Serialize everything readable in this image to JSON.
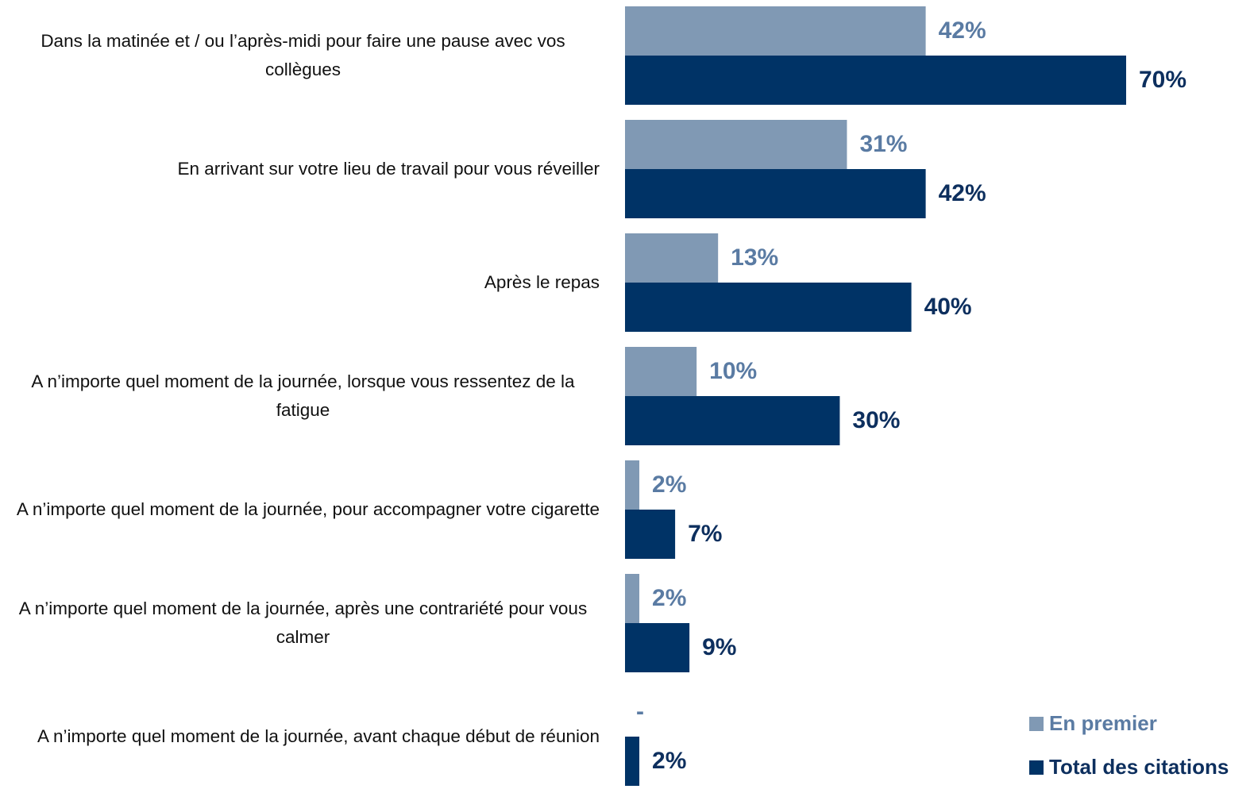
{
  "chart_data": {
    "type": "barh",
    "categories": [
      "Dans la matinée et / ou l’après-midi pour faire une pause avec vos collègues",
      "En arrivant sur votre lieu de travail pour vous réveiller",
      "Après le repas",
      "A n’importe quel moment de la journée, lorsque vous ressentez de la fatigue",
      "A n’importe quel moment de la journée, pour accompagner votre cigarette",
      "A n’importe quel moment de la journée, après une contrariété pour vous calmer",
      "A n’importe quel moment de la journée, avant chaque début de réunion"
    ],
    "series": [
      {
        "name": "En premier",
        "color": "#8099b4",
        "label_color": "#5a7ba3",
        "values": [
          42,
          31,
          13,
          10,
          2,
          2,
          null
        ],
        "value_labels": [
          "42%",
          "31%",
          "13%",
          "10%",
          "2%",
          "2%",
          "-"
        ]
      },
      {
        "name": "Total des citations",
        "color": "#003366",
        "label_color": "#0d2f5e",
        "values": [
          70,
          42,
          40,
          30,
          7,
          9,
          2
        ],
        "value_labels": [
          "70%",
          "42%",
          "40%",
          "30%",
          "7%",
          "9%",
          "2%"
        ]
      }
    ],
    "xlim": [
      0,
      100
    ],
    "legend": "lower right"
  }
}
